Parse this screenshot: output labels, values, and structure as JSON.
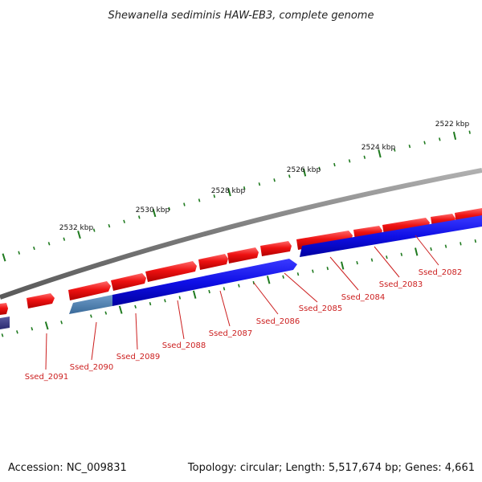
{
  "title": "Shewanella sediminis HAW-EB3, complete genome",
  "footer": {
    "accession": "Accession: NC_009831",
    "topology": "Topology: circular; Length: 5,517,674 bp; Genes: 4,661"
  },
  "ruler": [
    {
      "label": "2522 kbp"
    },
    {
      "label": "2524 kbp"
    },
    {
      "label": "2526 kbp"
    },
    {
      "label": "2528 kbp"
    },
    {
      "label": "2530 kbp"
    },
    {
      "label": "2532 kbp"
    }
  ],
  "genes": [
    {
      "name": "Ssed_2082"
    },
    {
      "name": "Ssed_2083"
    },
    {
      "name": "Ssed_2084"
    },
    {
      "name": "Ssed_2085"
    },
    {
      "name": "Ssed_2086"
    },
    {
      "name": "Ssed_2087"
    },
    {
      "name": "Ssed_2088"
    },
    {
      "name": "Ssed_2089"
    },
    {
      "name": "Ssed_2090"
    },
    {
      "name": "Ssed_2091"
    }
  ],
  "colors": {
    "forward": "#e81010",
    "reverse": "#1010e0",
    "selected": "#4a7fb0",
    "backbone": "#808080",
    "tick": "#1f7a1f",
    "label": "#cc1f1f"
  }
}
